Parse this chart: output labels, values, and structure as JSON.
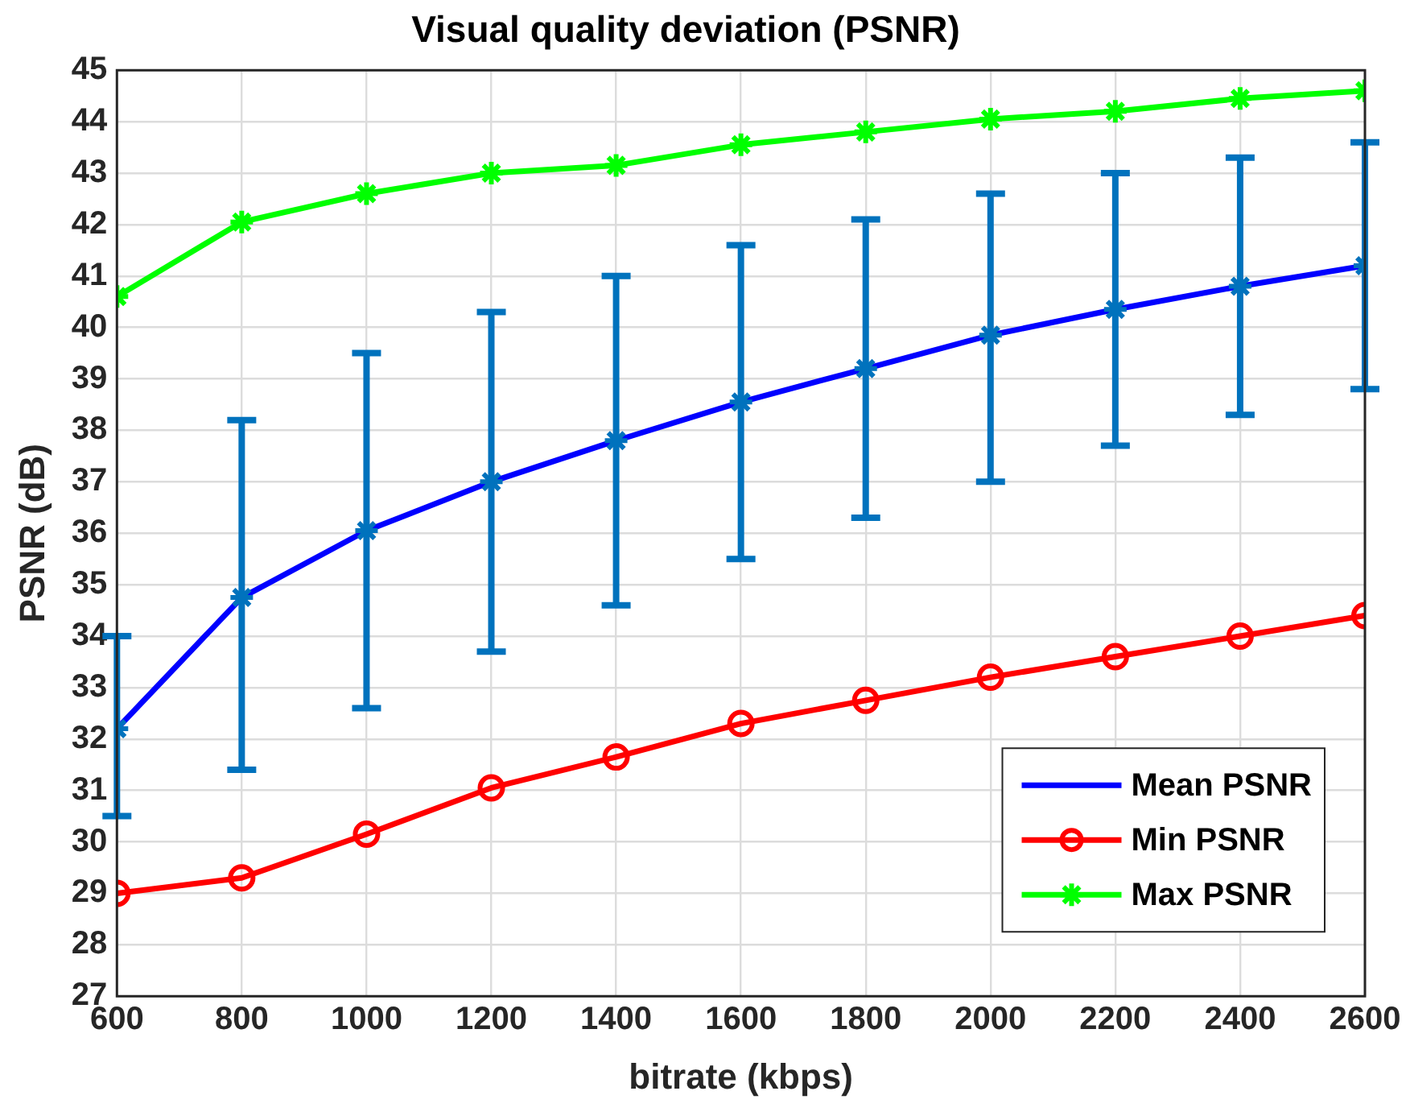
{
  "chart_data": {
    "type": "line",
    "title": "Visual quality deviation (PSNR)",
    "xlabel": "bitrate (kbps)",
    "ylabel": "PSNR (dB)",
    "x": [
      600,
      800,
      1000,
      1200,
      1400,
      1600,
      1800,
      2000,
      2200,
      2400,
      2600
    ],
    "xlim": [
      600,
      2600
    ],
    "xticks": [
      600,
      800,
      1000,
      1200,
      1400,
      1600,
      1800,
      2000,
      2200,
      2400,
      2600
    ],
    "ylim": [
      27,
      45
    ],
    "yticks": [
      27,
      28,
      29,
      30,
      31,
      32,
      33,
      34,
      35,
      36,
      37,
      38,
      39,
      40,
      41,
      42,
      43,
      44,
      45
    ],
    "grid": true,
    "legend": "bottom right",
    "series": [
      {
        "name": "Mean PSNR",
        "color": "#0000ff",
        "marker": "cross",
        "values": [
          32.2,
          34.75,
          36.05,
          37.0,
          37.8,
          38.55,
          39.2,
          39.85,
          40.35,
          40.8,
          41.2
        ],
        "errors": [
          [
            30.5,
            34.0
          ],
          [
            31.4,
            38.2
          ],
          [
            32.6,
            39.5
          ],
          [
            33.7,
            40.3
          ],
          [
            34.6,
            41.0
          ],
          [
            35.5,
            41.6
          ],
          [
            36.3,
            42.1
          ],
          [
            37.0,
            42.6
          ],
          [
            37.7,
            43.0
          ],
          [
            38.3,
            43.3
          ],
          [
            38.8,
            43.6
          ]
        ]
      },
      {
        "name": "Min PSNR",
        "color": "#ff0000",
        "marker": "circle",
        "values": [
          29.0,
          29.3,
          30.15,
          31.05,
          31.65,
          32.3,
          32.75,
          33.2,
          33.6,
          34.0,
          34.4
        ]
      },
      {
        "name": "Max PSNR",
        "color": "#00ff00",
        "marker": "cross",
        "values": [
          40.6,
          42.05,
          42.6,
          43.0,
          43.15,
          43.55,
          43.8,
          44.05,
          44.2,
          44.45,
          44.6
        ]
      }
    ]
  }
}
